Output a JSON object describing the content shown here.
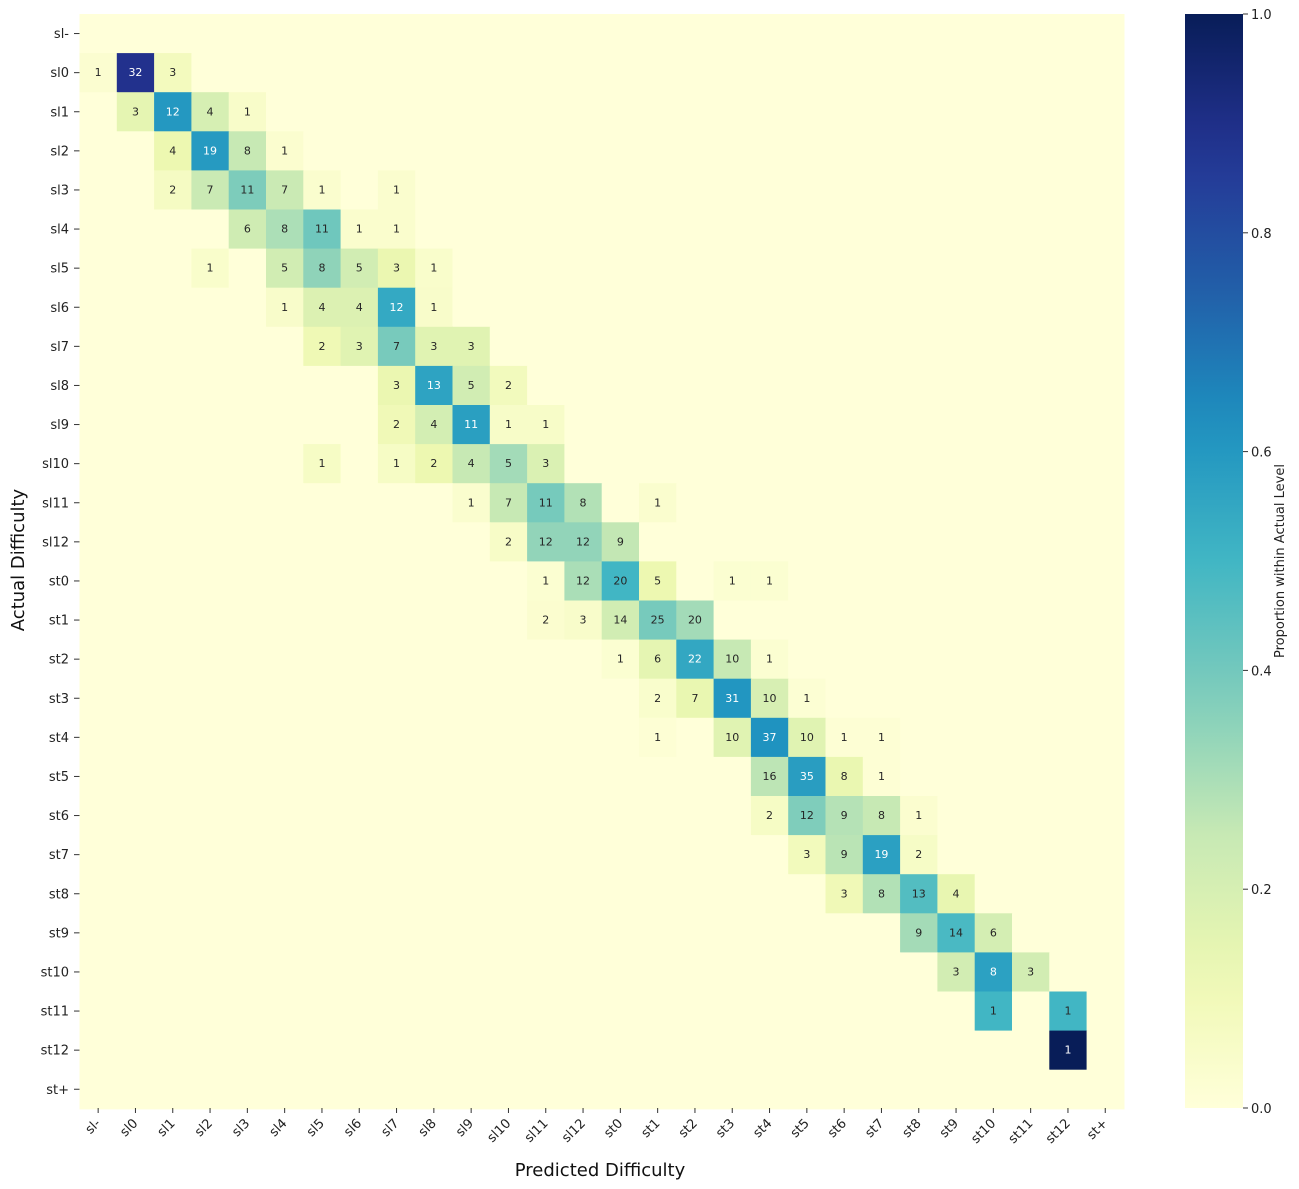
{
  "chart_data": {
    "type": "heatmap",
    "xlabel": "Predicted Difficulty",
    "ylabel": "Actual Difficulty",
    "colorbar": {
      "label": "Proportion within Actual Level",
      "range": [
        0.0,
        1.0
      ],
      "ticks": [
        "0.0",
        "0.2",
        "0.4",
        "0.6",
        "0.8",
        "1.0"
      ],
      "colormap": "YlGnBu"
    },
    "x_categories": [
      "sl-",
      "sl0",
      "sl1",
      "sl2",
      "sl3",
      "sl4",
      "sl5",
      "sl6",
      "sl7",
      "sl8",
      "sl9",
      "sl10",
      "sl11",
      "sl12",
      "st0",
      "st1",
      "st2",
      "st3",
      "st4",
      "st5",
      "st6",
      "st7",
      "st8",
      "st9",
      "st10",
      "st11",
      "st12",
      "st+"
    ],
    "y_categories": [
      "sl-",
      "sl0",
      "sl1",
      "sl2",
      "sl3",
      "sl4",
      "sl5",
      "sl6",
      "sl7",
      "sl8",
      "sl9",
      "sl10",
      "sl11",
      "sl12",
      "st0",
      "st1",
      "st2",
      "st3",
      "st4",
      "st5",
      "st6",
      "st7",
      "st8",
      "st9",
      "st10",
      "st11",
      "st12",
      "st+"
    ],
    "counts": [
      [
        0,
        0,
        0,
        0,
        0,
        0,
        0,
        0,
        0,
        0,
        0,
        0,
        0,
        0,
        0,
        0,
        0,
        0,
        0,
        0,
        0,
        0,
        0,
        0,
        0,
        0,
        0,
        0
      ],
      [
        1,
        32,
        3,
        0,
        0,
        0,
        0,
        0,
        0,
        0,
        0,
        0,
        0,
        0,
        0,
        0,
        0,
        0,
        0,
        0,
        0,
        0,
        0,
        0,
        0,
        0,
        0,
        0
      ],
      [
        0,
        3,
        12,
        4,
        1,
        0,
        0,
        0,
        0,
        0,
        0,
        0,
        0,
        0,
        0,
        0,
        0,
        0,
        0,
        0,
        0,
        0,
        0,
        0,
        0,
        0,
        0,
        0
      ],
      [
        0,
        0,
        4,
        19,
        8,
        1,
        0,
        0,
        0,
        0,
        0,
        0,
        0,
        0,
        0,
        0,
        0,
        0,
        0,
        0,
        0,
        0,
        0,
        0,
        0,
        0,
        0,
        0
      ],
      [
        0,
        0,
        2,
        7,
        11,
        7,
        1,
        0,
        1,
        0,
        0,
        0,
        0,
        0,
        0,
        0,
        0,
        0,
        0,
        0,
        0,
        0,
        0,
        0,
        0,
        0,
        0,
        0
      ],
      [
        0,
        0,
        0,
        0,
        6,
        8,
        11,
        1,
        1,
        0,
        0,
        0,
        0,
        0,
        0,
        0,
        0,
        0,
        0,
        0,
        0,
        0,
        0,
        0,
        0,
        0,
        0,
        0
      ],
      [
        0,
        0,
        0,
        1,
        0,
        5,
        8,
        5,
        3,
        1,
        0,
        0,
        0,
        0,
        0,
        0,
        0,
        0,
        0,
        0,
        0,
        0,
        0,
        0,
        0,
        0,
        0,
        0
      ],
      [
        0,
        0,
        0,
        0,
        0,
        1,
        4,
        4,
        12,
        1,
        0,
        0,
        0,
        0,
        0,
        0,
        0,
        0,
        0,
        0,
        0,
        0,
        0,
        0,
        0,
        0,
        0,
        0
      ],
      [
        0,
        0,
        0,
        0,
        0,
        0,
        2,
        3,
        7,
        3,
        3,
        0,
        0,
        0,
        0,
        0,
        0,
        0,
        0,
        0,
        0,
        0,
        0,
        0,
        0,
        0,
        0,
        0
      ],
      [
        0,
        0,
        0,
        0,
        0,
        0,
        0,
        0,
        3,
        13,
        5,
        2,
        0,
        0,
        0,
        0,
        0,
        0,
        0,
        0,
        0,
        0,
        0,
        0,
        0,
        0,
        0,
        0
      ],
      [
        0,
        0,
        0,
        0,
        0,
        0,
        0,
        0,
        2,
        4,
        11,
        1,
        1,
        0,
        0,
        0,
        0,
        0,
        0,
        0,
        0,
        0,
        0,
        0,
        0,
        0,
        0,
        0
      ],
      [
        0,
        0,
        0,
        0,
        0,
        0,
        1,
        0,
        1,
        2,
        4,
        5,
        3,
        0,
        0,
        0,
        0,
        0,
        0,
        0,
        0,
        0,
        0,
        0,
        0,
        0,
        0,
        0
      ],
      [
        0,
        0,
        0,
        0,
        0,
        0,
        0,
        0,
        0,
        0,
        1,
        7,
        11,
        8,
        0,
        1,
        0,
        0,
        0,
        0,
        0,
        0,
        0,
        0,
        0,
        0,
        0,
        0
      ],
      [
        0,
        0,
        0,
        0,
        0,
        0,
        0,
        0,
        0,
        0,
        0,
        2,
        12,
        12,
        9,
        0,
        0,
        0,
        0,
        0,
        0,
        0,
        0,
        0,
        0,
        0,
        0,
        0
      ],
      [
        0,
        0,
        0,
        0,
        0,
        0,
        0,
        0,
        0,
        0,
        0,
        0,
        1,
        12,
        20,
        5,
        0,
        1,
        1,
        0,
        0,
        0,
        0,
        0,
        0,
        0,
        0,
        0
      ],
      [
        0,
        0,
        0,
        0,
        0,
        0,
        0,
        0,
        0,
        0,
        0,
        0,
        2,
        3,
        14,
        25,
        20,
        0,
        0,
        0,
        0,
        0,
        0,
        0,
        0,
        0,
        0,
        0
      ],
      [
        0,
        0,
        0,
        0,
        0,
        0,
        0,
        0,
        0,
        0,
        0,
        0,
        0,
        0,
        1,
        6,
        22,
        10,
        1,
        0,
        0,
        0,
        0,
        0,
        0,
        0,
        0,
        0
      ],
      [
        0,
        0,
        0,
        0,
        0,
        0,
        0,
        0,
        0,
        0,
        0,
        0,
        0,
        0,
        0,
        2,
        7,
        31,
        10,
        1,
        0,
        0,
        0,
        0,
        0,
        0,
        0,
        0
      ],
      [
        0,
        0,
        0,
        0,
        0,
        0,
        0,
        0,
        0,
        0,
        0,
        0,
        0,
        0,
        0,
        1,
        0,
        10,
        37,
        10,
        1,
        1,
        0,
        0,
        0,
        0,
        0,
        0
      ],
      [
        0,
        0,
        0,
        0,
        0,
        0,
        0,
        0,
        0,
        0,
        0,
        0,
        0,
        0,
        0,
        0,
        0,
        0,
        16,
        35,
        8,
        1,
        0,
        0,
        0,
        0,
        0,
        0
      ],
      [
        0,
        0,
        0,
        0,
        0,
        0,
        0,
        0,
        0,
        0,
        0,
        0,
        0,
        0,
        0,
        0,
        0,
        0,
        2,
        12,
        9,
        8,
        1,
        0,
        0,
        0,
        0,
        0
      ],
      [
        0,
        0,
        0,
        0,
        0,
        0,
        0,
        0,
        0,
        0,
        0,
        0,
        0,
        0,
        0,
        0,
        0,
        0,
        0,
        3,
        9,
        19,
        2,
        0,
        0,
        0,
        0,
        0
      ],
      [
        0,
        0,
        0,
        0,
        0,
        0,
        0,
        0,
        0,
        0,
        0,
        0,
        0,
        0,
        0,
        0,
        0,
        0,
        0,
        0,
        3,
        8,
        13,
        4,
        0,
        0,
        0,
        0
      ],
      [
        0,
        0,
        0,
        0,
        0,
        0,
        0,
        0,
        0,
        0,
        0,
        0,
        0,
        0,
        0,
        0,
        0,
        0,
        0,
        0,
        0,
        0,
        9,
        14,
        6,
        0,
        0,
        0
      ],
      [
        0,
        0,
        0,
        0,
        0,
        0,
        0,
        0,
        0,
        0,
        0,
        0,
        0,
        0,
        0,
        0,
        0,
        0,
        0,
        0,
        0,
        0,
        0,
        3,
        8,
        3,
        0,
        0
      ],
      [
        0,
        0,
        0,
        0,
        0,
        0,
        0,
        0,
        0,
        0,
        0,
        0,
        0,
        0,
        0,
        0,
        0,
        0,
        0,
        0,
        0,
        0,
        0,
        0,
        1,
        0,
        1,
        0
      ],
      [
        0,
        0,
        0,
        0,
        0,
        0,
        0,
        0,
        0,
        0,
        0,
        0,
        0,
        0,
        0,
        0,
        0,
        0,
        0,
        0,
        0,
        0,
        0,
        0,
        0,
        0,
        1,
        0
      ],
      [
        0,
        0,
        0,
        0,
        0,
        0,
        0,
        0,
        0,
        0,
        0,
        0,
        0,
        0,
        0,
        0,
        0,
        0,
        0,
        0,
        0,
        0,
        0,
        0,
        0,
        0,
        0,
        0
      ]
    ],
    "grid": false
  }
}
